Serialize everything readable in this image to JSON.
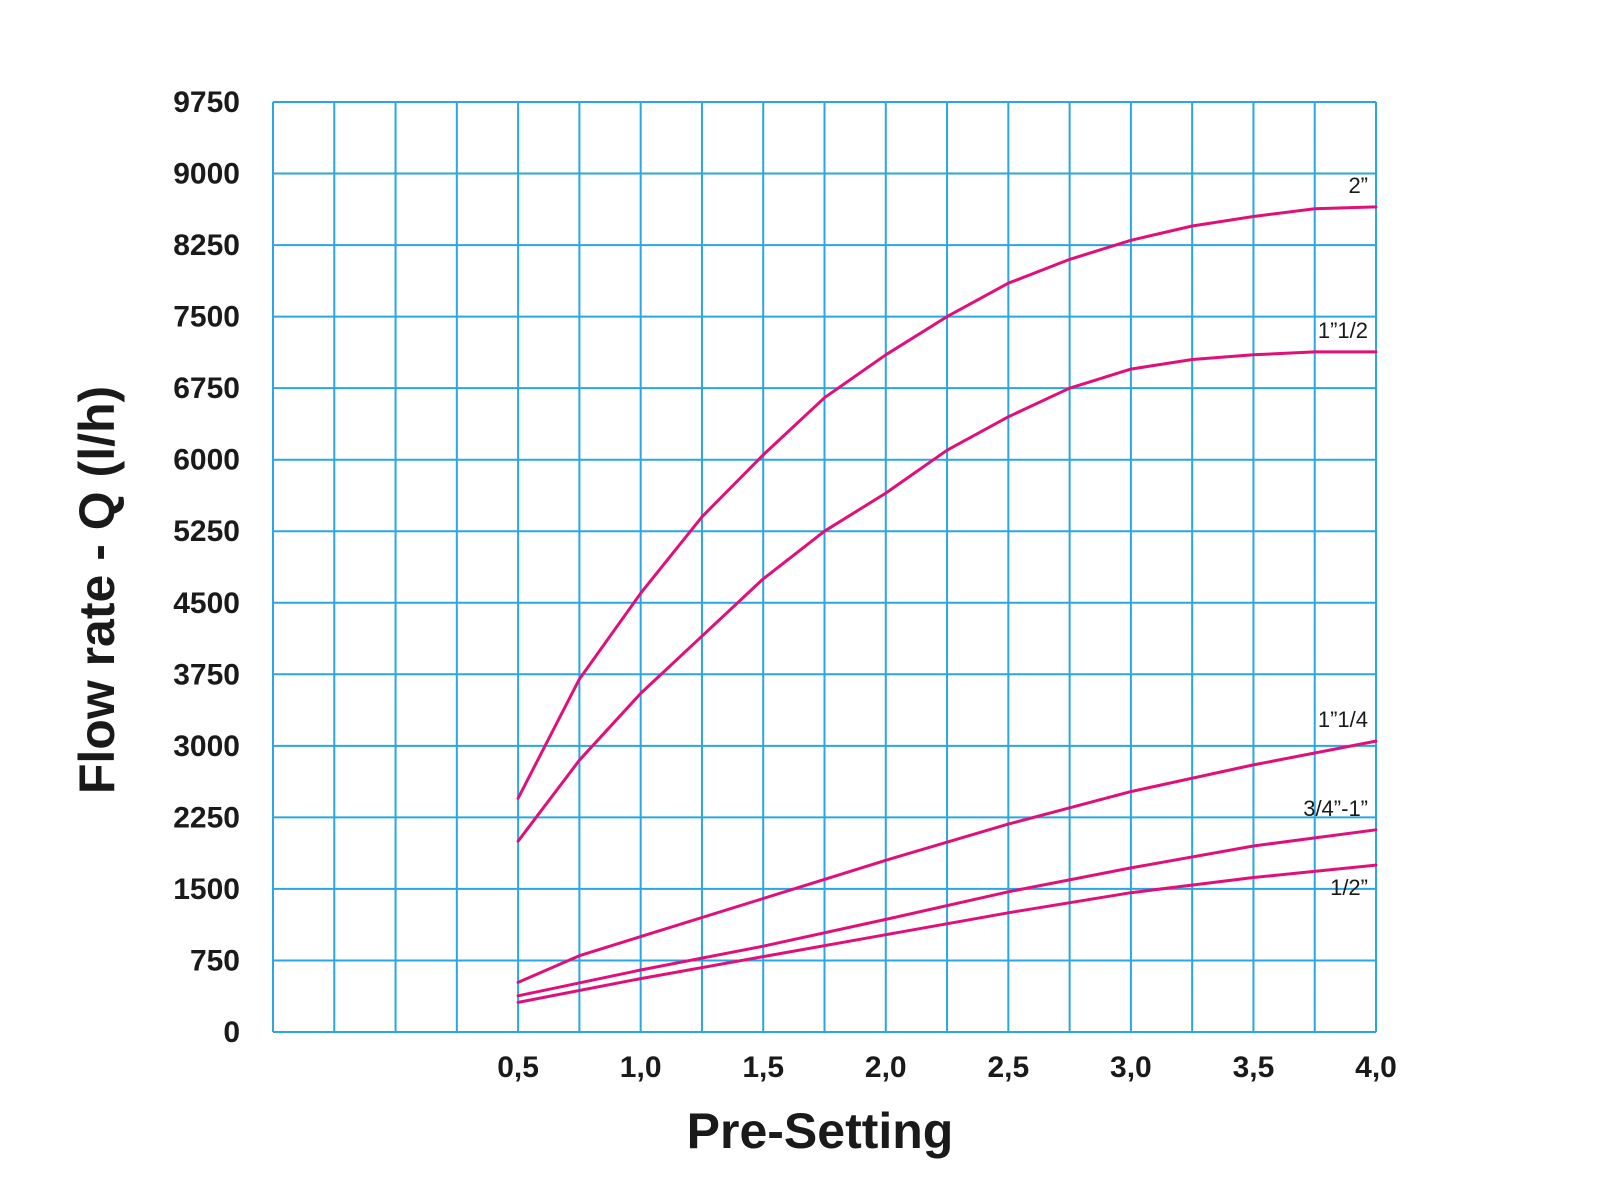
{
  "chart_data": {
    "type": "line",
    "xlabel": "Pre-Setting",
    "ylabel": "Flow rate - Q (l/h)",
    "xlim": [
      -0.5,
      4.0
    ],
    "ylim": [
      0,
      9750
    ],
    "x_ticks": [
      0.5,
      1.0,
      1.5,
      2.0,
      2.5,
      3.0,
      3.5,
      4.0
    ],
    "x_tick_labels": [
      "0,5",
      "1,0",
      "1,5",
      "2,0",
      "2,5",
      "3,0",
      "3,5",
      "4,0"
    ],
    "y_ticks": [
      0,
      750,
      1500,
      2250,
      3000,
      3750,
      4500,
      5250,
      6000,
      6750,
      7500,
      8250,
      9000,
      9750
    ],
    "y_tick_labels": [
      "0",
      "750",
      "1500",
      "2250",
      "3000",
      "3750",
      "4500",
      "5250",
      "6000",
      "6750",
      "7500",
      "8250",
      "9000",
      "9750"
    ],
    "x_grid_step": 0.25,
    "y_grid_step": 750,
    "grid": true,
    "colors": {
      "grid": "#2aa6e0",
      "series": "#e0107a",
      "text": "#1a1a1a"
    },
    "series": [
      {
        "name": "2”",
        "x": [
          0.5,
          0.75,
          1.0,
          1.25,
          1.5,
          1.75,
          2.0,
          2.25,
          2.5,
          2.75,
          3.0,
          3.25,
          3.5,
          3.75,
          4.0
        ],
        "y": [
          2450,
          3700,
          4600,
          5400,
          6050,
          6650,
          7100,
          7500,
          7850,
          8100,
          8300,
          8450,
          8550,
          8630,
          8650
        ]
      },
      {
        "name": "1”1/2",
        "x": [
          0.5,
          0.75,
          1.0,
          1.25,
          1.5,
          1.75,
          2.0,
          2.25,
          2.5,
          2.75,
          3.0,
          3.25,
          3.5,
          3.75,
          4.0
        ],
        "y": [
          2000,
          2850,
          3550,
          4150,
          4750,
          5250,
          5650,
          6100,
          6450,
          6750,
          6950,
          7050,
          7100,
          7130,
          7130
        ]
      },
      {
        "name": "1”1/4",
        "x": [
          0.5,
          0.75,
          1.0,
          1.5,
          2.0,
          2.5,
          3.0,
          3.5,
          4.0
        ],
        "y": [
          520,
          800,
          1000,
          1400,
          1800,
          2180,
          2520,
          2800,
          3050
        ]
      },
      {
        "name": "3/4”-1”",
        "x": [
          0.5,
          1.0,
          1.5,
          2.0,
          2.5,
          3.0,
          3.5,
          4.0
        ],
        "y": [
          380,
          650,
          900,
          1180,
          1470,
          1720,
          1950,
          2120
        ]
      },
      {
        "name": "1/2”",
        "x": [
          0.5,
          1.0,
          1.5,
          2.0,
          2.5,
          3.0,
          3.5,
          4.0
        ],
        "y": [
          310,
          560,
          790,
          1020,
          1250,
          1460,
          1620,
          1750
        ]
      }
    ]
  }
}
